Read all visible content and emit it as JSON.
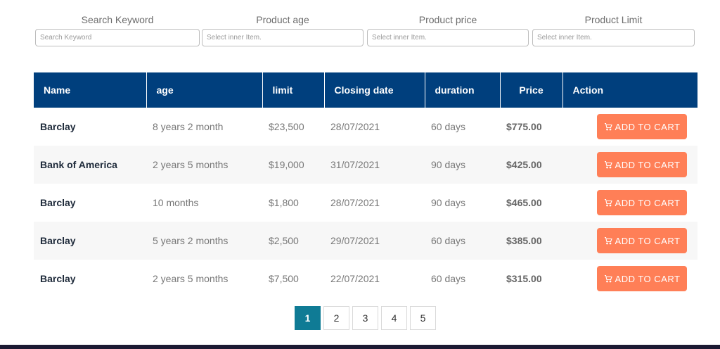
{
  "filters": [
    {
      "label": "Search Keyword",
      "placeholder": "Search Keyword"
    },
    {
      "label": "Product age",
      "placeholder": "Select inner Item."
    },
    {
      "label": "Product price",
      "placeholder": "Select inner Item."
    },
    {
      "label": "Product Limit",
      "placeholder": "Select inner Item."
    }
  ],
  "table": {
    "headers": [
      "Name",
      "age",
      "limit",
      "Closing date",
      "duration",
      "Price",
      "Action"
    ],
    "rows": [
      {
        "name": "Barclay",
        "age": "8 years 2 month",
        "limit": "$23,500",
        "closing_date": "28/07/2021",
        "duration": "60 days",
        "price": "$775.00",
        "action": "ADD TO CART"
      },
      {
        "name": "Bank of America",
        "age": "2 years 5 months",
        "limit": "$19,000",
        "closing_date": "31/07/2021",
        "duration": "90 days",
        "price": "$425.00",
        "action": "ADD TO CART"
      },
      {
        "name": "Barclay",
        "age": "10 months",
        "limit": "$1,800",
        "closing_date": "28/07/2021",
        "duration": "90 days",
        "price": "$465.00",
        "action": "ADD TO CART"
      },
      {
        "name": "Barclay",
        "age": "5 years 2 months",
        "limit": "$2,500",
        "closing_date": "29/07/2021",
        "duration": "60 days",
        "price": "$385.00",
        "action": "ADD TO CART"
      },
      {
        "name": "Barclay",
        "age": "2 years 5 months",
        "limit": "$7,500",
        "closing_date": "22/07/2021",
        "duration": "60 days",
        "price": "$315.00",
        "action": "ADD TO CART"
      }
    ]
  },
  "pagination": {
    "pages": [
      "1",
      "2",
      "3",
      "4",
      "5"
    ],
    "active": "1"
  },
  "colors": {
    "header_bg": "#003f7d",
    "button_bg": "#ff7f57",
    "active_page": "#0f7b95"
  },
  "icons": {
    "cart": "cart-icon"
  }
}
